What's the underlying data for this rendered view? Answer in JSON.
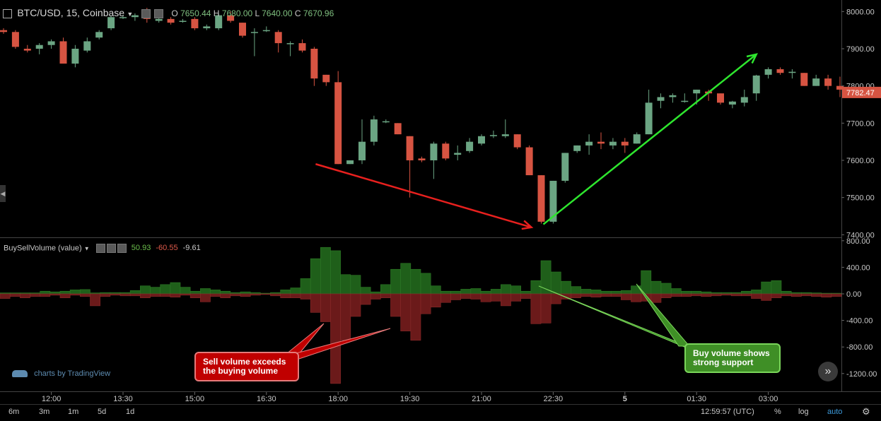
{
  "header": {
    "symbol": "BTC/USD, 15, Coinbase",
    "ohlc": {
      "o_label": "O",
      "o": "7650.44",
      "h_label": "H",
      "h": "7680.00",
      "l_label": "L",
      "l": "7640.00",
      "c_label": "C",
      "c": "7670.96"
    }
  },
  "indicator": {
    "name": "BuySellVolume (value)",
    "v1": "50.93",
    "v2": "-60.55",
    "v3": "-9.61"
  },
  "price_tag": "7782.47",
  "callouts": {
    "sell": "Sell volume exceeds the buying volume",
    "buy": "Buy volume shows strong support"
  },
  "branding": "charts by TradingView",
  "timeframes": [
    "6m",
    "3m",
    "1m",
    "5d",
    "1d"
  ],
  "bottom_right": {
    "time": "12:59:57 (UTC)",
    "percent": "%",
    "log": "log",
    "auto": "auto"
  },
  "colors": {
    "up": "#6ba583",
    "down": "#d75442",
    "buyvol": "#1f5f1a",
    "sellvol": "#6b1a1a",
    "red_arrow": "#e8201e",
    "green_arrow": "#2ee62e"
  },
  "chart_data": [
    {
      "type": "candlestick",
      "title": "BTC/USD, 15, Coinbase",
      "x_ticks": [
        "12:00",
        "13:30",
        "15:00",
        "16:30",
        "18:00",
        "19:30",
        "21:00",
        "22:30",
        "5",
        "01:30",
        "03:00"
      ],
      "y_ticks": [
        8000,
        7900,
        7800,
        7700,
        7600,
        7500,
        7400
      ],
      "ylim": [
        7393,
        8031
      ],
      "candles": [
        [
          7950,
          7955,
          7940,
          7945
        ],
        [
          7945,
          7950,
          7900,
          7905
        ],
        [
          7900,
          7910,
          7890,
          7895
        ],
        [
          7900,
          7915,
          7885,
          7910
        ],
        [
          7910,
          7925,
          7900,
          7920
        ],
        [
          7920,
          7930,
          7860,
          7860
        ],
        [
          7860,
          7910,
          7850,
          7900
        ],
        [
          7895,
          7930,
          7890,
          7920
        ],
        [
          7930,
          7950,
          7925,
          7945
        ],
        [
          7955,
          7990,
          7950,
          7985
        ],
        [
          7985,
          7990,
          7980,
          7985
        ],
        [
          7985,
          7995,
          7975,
          7990
        ],
        [
          7990,
          8010,
          7970,
          7980
        ],
        [
          7975,
          7985,
          7970,
          7980
        ],
        [
          7980,
          7985,
          7965,
          7970
        ],
        [
          7975,
          7980,
          7970,
          7975
        ],
        [
          7980,
          7985,
          7950,
          7955
        ],
        [
          7955,
          7965,
          7950,
          7960
        ],
        [
          7955,
          7995,
          7950,
          7990
        ],
        [
          7990,
          8000,
          7970,
          7975
        ],
        [
          7970,
          7970,
          7930,
          7935
        ],
        [
          7945,
          7955,
          7880,
          7945
        ],
        [
          7950,
          7960,
          7945,
          7950
        ],
        [
          7945,
          7950,
          7890,
          7915
        ],
        [
          7915,
          7920,
          7880,
          7915
        ],
        [
          7915,
          7925,
          7890,
          7895
        ],
        [
          7900,
          7905,
          7800,
          7820
        ],
        [
          7830,
          7830,
          7800,
          7810
        ],
        [
          7810,
          7840,
          7590,
          7590
        ],
        [
          7590,
          7600,
          7590,
          7600
        ],
        [
          7600,
          7710,
          7590,
          7650
        ],
        [
          7650,
          7720,
          7640,
          7710
        ],
        [
          7705,
          7710,
          7700,
          7705
        ],
        [
          7700,
          7700,
          7670,
          7670
        ],
        [
          7665,
          7665,
          7500,
          7600
        ],
        [
          7605,
          7610,
          7595,
          7600
        ],
        [
          7600,
          7650,
          7550,
          7645
        ],
        [
          7645,
          7650,
          7600,
          7605
        ],
        [
          7615,
          7640,
          7600,
          7620
        ],
        [
          7625,
          7660,
          7620,
          7650
        ],
        [
          7645,
          7670,
          7640,
          7665
        ],
        [
          7665,
          7680,
          7660,
          7668
        ],
        [
          7665,
          7710,
          7660,
          7670
        ],
        [
          7670,
          7670,
          7630,
          7635
        ],
        [
          7635,
          7640,
          7560,
          7560
        ],
        [
          7560,
          7560,
          7430,
          7435
        ],
        [
          7435,
          7545,
          7430,
          7545
        ],
        [
          7545,
          7620,
          7540,
          7620
        ],
        [
          7625,
          7640,
          7620,
          7640
        ],
        [
          7640,
          7670,
          7615,
          7650
        ],
        [
          7650,
          7675,
          7630,
          7645
        ],
        [
          7640,
          7660,
          7630,
          7650
        ],
        [
          7650,
          7660,
          7620,
          7640
        ],
        [
          7645,
          7675,
          7645,
          7670
        ],
        [
          7670,
          7790,
          7670,
          7755
        ],
        [
          7760,
          7780,
          7740,
          7770
        ],
        [
          7770,
          7780,
          7755,
          7775
        ],
        [
          7760,
          7780,
          7755,
          7760
        ],
        [
          7780,
          7790,
          7750,
          7790
        ],
        [
          7785,
          7790,
          7760,
          7780
        ],
        [
          7780,
          7780,
          7750,
          7755
        ],
        [
          7750,
          7760,
          7740,
          7758
        ],
        [
          7755,
          7790,
          7745,
          7770
        ],
        [
          7780,
          7830,
          7760,
          7828
        ],
        [
          7830,
          7850,
          7820,
          7845
        ],
        [
          7845,
          7850,
          7830,
          7835
        ],
        [
          7835,
          7845,
          7820,
          7838
        ],
        [
          7835,
          7835,
          7800,
          7800
        ],
        [
          7800,
          7830,
          7800,
          7820
        ],
        [
          7820,
          7830,
          7790,
          7800
        ],
        [
          7800,
          7825,
          7770,
          7790
        ]
      ],
      "arrows": [
        {
          "color": "red",
          "from": [
            "17:30",
            7590
          ],
          "to": [
            "22:00",
            7420
          ]
        },
        {
          "color": "green",
          "from": [
            "22:15",
            7428
          ],
          "to": [
            "02:30",
            7885
          ]
        }
      ],
      "last_price": 7782.47
    },
    {
      "type": "bar",
      "title": "BuySellVolume (value)",
      "y_ticks": [
        800,
        400,
        0,
        -400,
        -800,
        -1200
      ],
      "ylim": [
        -1350,
        800
      ],
      "series": [
        {
          "name": "buy",
          "values": [
            15,
            15,
            15,
            15,
            40,
            30,
            40,
            60,
            65,
            15,
            20,
            20,
            20,
            50,
            120,
            100,
            140,
            170,
            100,
            40,
            80,
            60,
            40,
            20,
            30,
            20,
            10,
            20,
            60,
            90,
            230,
            530,
            700,
            650,
            290,
            280,
            100,
            30,
            140,
            370,
            460,
            370,
            310,
            120,
            40,
            40,
            70,
            80,
            40,
            70,
            140,
            120,
            40,
            200,
            500,
            330,
            190,
            110,
            70,
            60,
            40,
            40,
            50,
            120,
            350,
            190,
            160,
            80,
            40,
            40,
            30,
            20,
            20,
            20,
            40,
            60,
            180,
            200,
            40,
            20,
            20,
            15,
            10,
            10
          ]
        },
        {
          "name": "sell",
          "values": [
            -70,
            -40,
            -60,
            -40,
            -40,
            -20,
            -60,
            -20,
            -40,
            -180,
            -40,
            -20,
            -30,
            -30,
            -60,
            -40,
            -40,
            -50,
            -20,
            -60,
            -120,
            -40,
            -60,
            -30,
            -40,
            -20,
            -10,
            -30,
            -60,
            -60,
            -80,
            -280,
            -420,
            -1350,
            -700,
            -340,
            -160,
            -80,
            -60,
            -340,
            -560,
            -700,
            -300,
            -200,
            -130,
            -90,
            -70,
            -80,
            -120,
            -110,
            -180,
            -110,
            -70,
            -450,
            -440,
            -150,
            -80,
            -60,
            -40,
            -50,
            -40,
            -40,
            -90,
            -120,
            -110,
            -130,
            -60,
            -40,
            -40,
            -30,
            -40,
            -30,
            -20,
            -30,
            -30,
            -70,
            -100,
            -60,
            -30,
            -40,
            -30,
            -40,
            -50,
            -40
          ]
        }
      ]
    }
  ]
}
